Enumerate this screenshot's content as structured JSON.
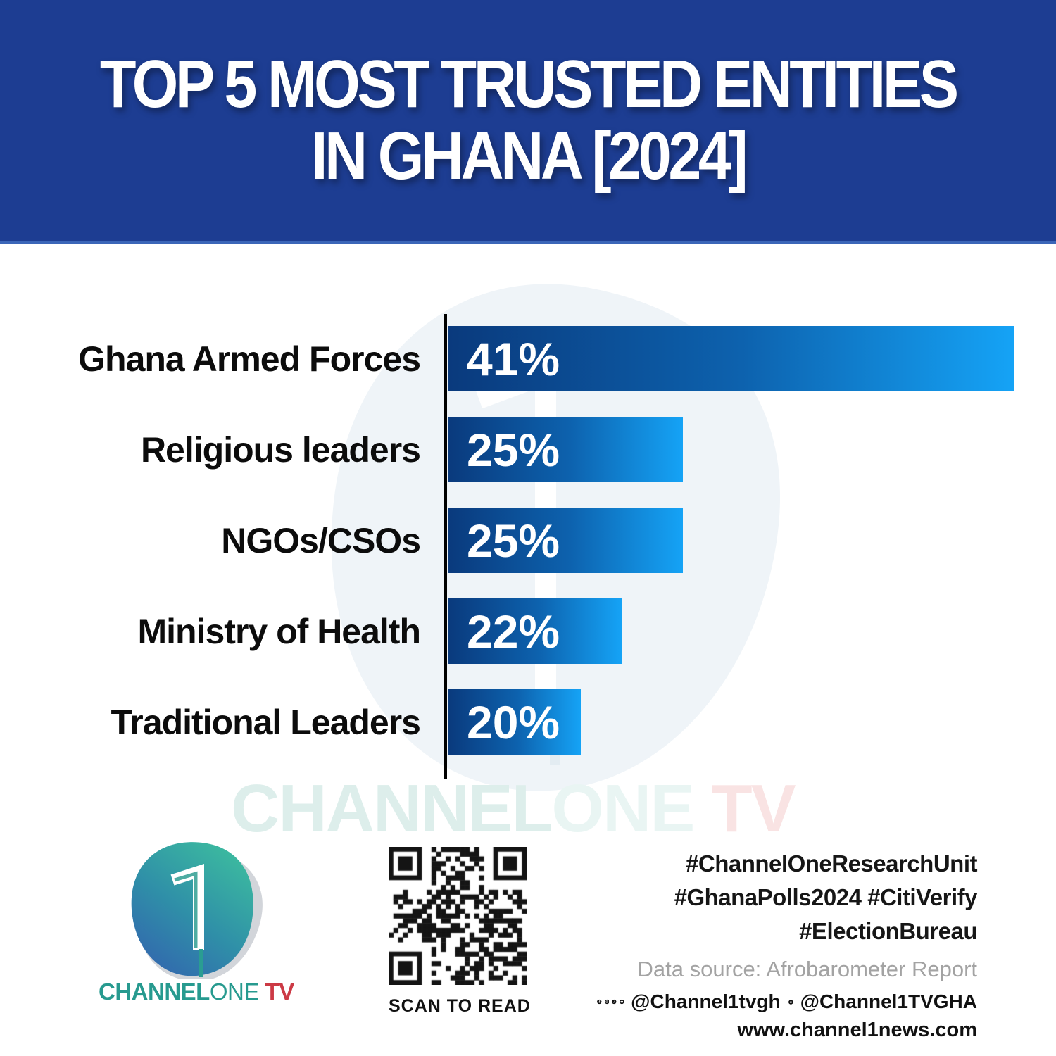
{
  "header": {
    "title_line1": "TOP 5 MOST TRUSTED ENTITIES",
    "title_line2": "IN GHANA [2024]"
  },
  "chart_data": {
    "type": "bar",
    "orientation": "horizontal",
    "title": "TOP 5 MOST TRUSTED ENTITIES IN GHANA [2024]",
    "categories": [
      "Ghana Armed Forces",
      "Religious leaders",
      "NGOs/CSOs",
      "Ministry of Health",
      "Traditional Leaders"
    ],
    "values": [
      41,
      25,
      25,
      22,
      20
    ],
    "value_labels": [
      "41%",
      "25%",
      "25%",
      "22%",
      "20%"
    ],
    "xlabel": "",
    "ylabel": "",
    "legend": false,
    "gridlines": false,
    "layout": {
      "value_labels_inside_bars": true,
      "baseline_axis_line": true,
      "bar_width_pct": [
        100,
        41.5,
        41.5,
        30.6,
        23.4
      ]
    },
    "bar_gradient": [
      "#0a3a7d",
      "#15a3f6"
    ]
  },
  "watermark": {
    "channel": "CHANNEL",
    "one": "ONE",
    "tv": " TV",
    "numeral": "1"
  },
  "footer": {
    "logo": {
      "numeral": "1",
      "wordmark_channel": "CHANNEL",
      "wordmark_one": "ONE",
      "wordmark_tv": " TV"
    },
    "qr_caption": "SCAN TO READ",
    "hashtags_line1": "#ChannelOneResearchUnit",
    "hashtags_line2": "#GhanaPolls2024 #CitiVerify",
    "hashtags_line3": "#ElectionBureau",
    "data_source": "Data source: Afrobarometer Report",
    "social_handle_1": "@Channel1tvgh",
    "social_handle_2": "@Channel1TVGHA",
    "website": "www.channel1news.com",
    "icon_glyphs": {
      "facebook": "f",
      "tiktok": "♪",
      "x": "X"
    }
  },
  "colors": {
    "header_bg": "#1d3d92",
    "header_edge": "#3b66b8",
    "bar_dark": "#0a3a7d",
    "bar_light": "#15a3f6",
    "label_text": "#0c0c0c",
    "logo_teal": "#279a8f",
    "logo_red": "#cc3a45",
    "source_gray": "#a3a3a3"
  }
}
